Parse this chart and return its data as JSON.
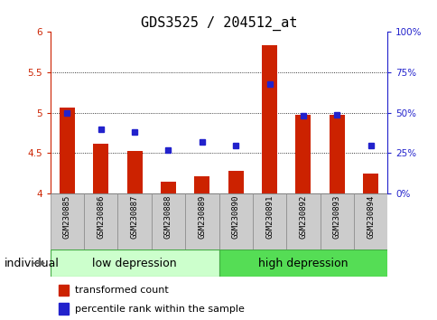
{
  "title": "GDS3525 / 204512_at",
  "samples": [
    "GSM230885",
    "GSM230886",
    "GSM230887",
    "GSM230888",
    "GSM230889",
    "GSM230890",
    "GSM230891",
    "GSM230892",
    "GSM230893",
    "GSM230894"
  ],
  "transformed_counts": [
    5.07,
    4.62,
    4.53,
    4.15,
    4.22,
    4.28,
    5.84,
    4.97,
    4.97,
    4.25
  ],
  "percentile_ranks": [
    50,
    40,
    38,
    27,
    32,
    30,
    68,
    48,
    49,
    30
  ],
  "ylim_left": [
    4.0,
    6.0
  ],
  "ylim_right": [
    0,
    100
  ],
  "yticks_left": [
    4.0,
    4.5,
    5.0,
    5.5,
    6.0
  ],
  "yticks_right": [
    0,
    25,
    50,
    75,
    100
  ],
  "ytick_labels_right": [
    "0%",
    "25%",
    "50%",
    "75%",
    "100%"
  ],
  "ytick_labels_left": [
    "4",
    "4.5",
    "5",
    "5.5",
    "6"
  ],
  "bar_color": "#cc2200",
  "dot_color": "#2222cc",
  "group_low_color": "#ccffcc",
  "group_high_color": "#55dd55",
  "group_border_color": "#44aa44",
  "sample_box_color": "#cccccc",
  "sample_box_edge": "#888888",
  "groups": [
    {
      "label": "low depression",
      "start": 0,
      "end": 5
    },
    {
      "label": "high depression",
      "start": 5,
      "end": 10
    }
  ],
  "legend_items": [
    "transformed count",
    "percentile rank within the sample"
  ],
  "xlabel_text": "individual",
  "tick_fontsize": 7.5,
  "label_fontsize": 6.5,
  "title_fontsize": 11,
  "group_fontsize": 9,
  "legend_fontsize": 8,
  "bar_width": 0.45,
  "grid_yticks": [
    4.5,
    5.0,
    5.5
  ]
}
